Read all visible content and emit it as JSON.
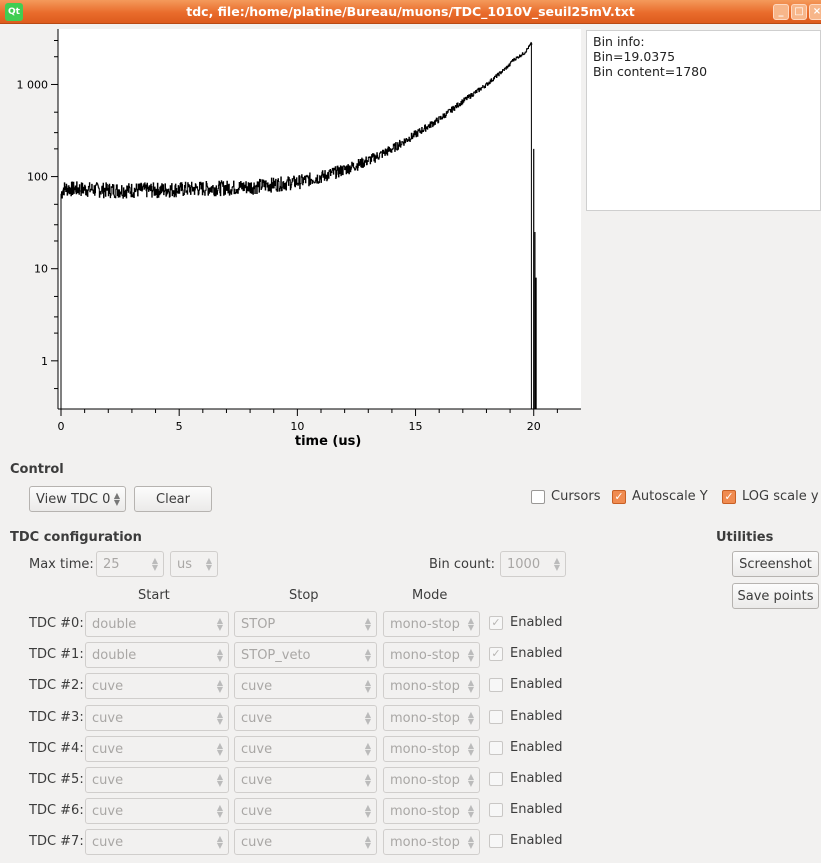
{
  "window": {
    "title": "tdc, file:/home/platine/Bureau/muons/TDC_1010V_seuil25mV.txt",
    "logo": "Qt",
    "minimize": "_",
    "maximize": "□",
    "close": "×"
  },
  "info": {
    "line1": "Bin info:",
    "line2": "Bin=19.0375",
    "line3": "Bin content=1780"
  },
  "chart_data": {
    "type": "line",
    "xlabel": "time (us)",
    "ylabel": "",
    "xlim": [
      0,
      22
    ],
    "ylim": [
      0.3,
      4000
    ],
    "log_y": true,
    "grid": false,
    "x_ticks": [
      "0",
      "5",
      "10",
      "15",
      "20"
    ],
    "y_ticks": [
      "1",
      "10",
      "100",
      "1 000"
    ],
    "series": [
      {
        "x": [
          0.0,
          0.1,
          2,
          4,
          6,
          8,
          10,
          11,
          12,
          13,
          14,
          15,
          16,
          17,
          18,
          19,
          19.0375,
          19.6,
          19.9,
          20.0,
          20.1,
          20.15
        ],
        "y": [
          65,
          75,
          72,
          72,
          75,
          78,
          88,
          100,
          120,
          150,
          200,
          290,
          420,
          660,
          1000,
          1650,
          1780,
          2200,
          2800,
          200,
          25,
          8
        ]
      }
    ]
  },
  "control": {
    "section": "Control",
    "view_select": "View TDC 0",
    "clear": "Clear",
    "cursors": "Cursors",
    "autoscale": "Autoscale Y",
    "logscale": "LOG scale y"
  },
  "tdc": {
    "section": "TDC configuration",
    "max_time_label": "Max time:",
    "max_time_value": "25",
    "max_time_unit": "us",
    "bin_count_label": "Bin count:",
    "bin_count_value": "1000",
    "col_start": "Start",
    "col_stop": "Stop",
    "col_mode": "Mode",
    "enabled": "Enabled",
    "rows": [
      {
        "label": "TDC #0:",
        "start": "double",
        "stop": "STOP",
        "mode": "mono-stop",
        "checked": true
      },
      {
        "label": "TDC #1:",
        "start": "double",
        "stop": "STOP_veto",
        "mode": "mono-stop",
        "checked": true
      },
      {
        "label": "TDC #2:",
        "start": "cuve",
        "stop": "cuve",
        "mode": "mono-stop",
        "checked": false
      },
      {
        "label": "TDC #3:",
        "start": "cuve",
        "stop": "cuve",
        "mode": "mono-stop",
        "checked": false
      },
      {
        "label": "TDC #4:",
        "start": "cuve",
        "stop": "cuve",
        "mode": "mono-stop",
        "checked": false
      },
      {
        "label": "TDC #5:",
        "start": "cuve",
        "stop": "cuve",
        "mode": "mono-stop",
        "checked": false
      },
      {
        "label": "TDC #6:",
        "start": "cuve",
        "stop": "cuve",
        "mode": "mono-stop",
        "checked": false
      },
      {
        "label": "TDC #7:",
        "start": "cuve",
        "stop": "cuve",
        "mode": "mono-stop",
        "checked": false
      }
    ]
  },
  "utilities": {
    "section": "Utilities",
    "screenshot": "Screenshot",
    "save_points": "Save points"
  }
}
